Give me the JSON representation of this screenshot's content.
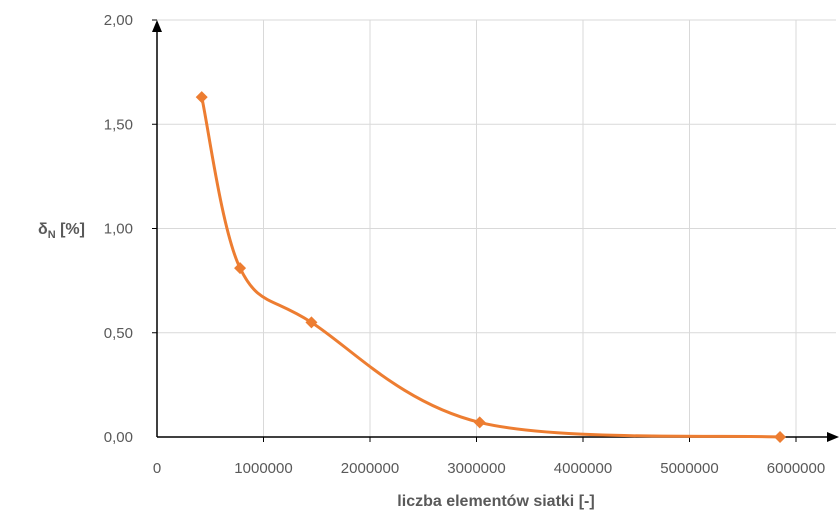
{
  "chart_data": {
    "type": "scatter",
    "xlabel": "liczba elementów siatki [-]",
    "ylabel": {
      "main": "δ",
      "sub": "N",
      "rest": " [%]"
    },
    "xlim": [
      0,
      6000000
    ],
    "ylim": [
      0,
      2
    ],
    "x_ticks": [
      0,
      1000000,
      2000000,
      3000000,
      4000000,
      5000000,
      6000000
    ],
    "x_tick_labels": [
      "0",
      "1000000",
      "2000000",
      "3000000",
      "4000000",
      "5000000",
      "6000000"
    ],
    "y_ticks": [
      0,
      0.5,
      1,
      1.5,
      2
    ],
    "y_tick_labels": [
      "0,00",
      "0,50",
      "1,00",
      "1,50",
      "2,00"
    ],
    "grid": true,
    "smooth": true,
    "series": [
      {
        "color": "#ED7D31",
        "marker": "diamond",
        "x": [
          420000,
          780000,
          1450000,
          3030000,
          5850000
        ],
        "y": [
          1.63,
          0.81,
          0.55,
          0.07,
          0.0
        ]
      }
    ]
  }
}
